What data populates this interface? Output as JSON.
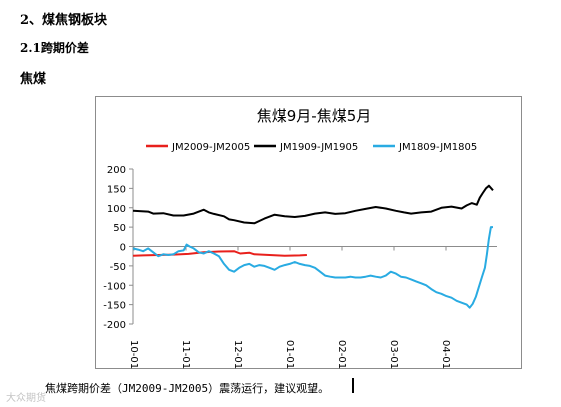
{
  "doc": {
    "section_heading": "2、煤焦钢板块",
    "subsection_heading": "2.1跨期价差",
    "product_heading": "焦煤",
    "caption": "焦煤跨期价差（JM2009-JM2005）震荡运行，建议观望。",
    "watermark": "大众期货"
  },
  "chart_data": {
    "type": "line",
    "title": "焦煤9月-焦煤5月",
    "x_ticks": [
      "10-01",
      "11-01",
      "12-01",
      "01-01",
      "02-01",
      "03-01",
      "04-01"
    ],
    "ylim": [
      -200,
      200
    ],
    "y_ticks": [
      200,
      150,
      100,
      50,
      0,
      -50,
      -100,
      -150,
      -200
    ],
    "grid": false,
    "legend_position": "top",
    "series": [
      {
        "name": "JM2009-JM2005",
        "color": "#e8201c",
        "points": [
          [
            0,
            -24
          ],
          [
            10,
            -23
          ],
          [
            25,
            -22
          ],
          [
            40,
            -21
          ],
          [
            55,
            -19
          ],
          [
            70,
            -15
          ],
          [
            85,
            -13
          ],
          [
            100,
            -12
          ],
          [
            106,
            -18
          ],
          [
            115,
            -16
          ],
          [
            120,
            -20
          ],
          [
            135,
            -22
          ],
          [
            150,
            -24
          ],
          [
            165,
            -23
          ],
          [
            172,
            -22
          ]
        ]
      },
      {
        "name": "JM1909-JM1905",
        "color": "#000000",
        "points": [
          [
            0,
            92
          ],
          [
            15,
            90
          ],
          [
            20,
            85
          ],
          [
            30,
            86
          ],
          [
            40,
            80
          ],
          [
            50,
            80
          ],
          [
            60,
            85
          ],
          [
            70,
            95
          ],
          [
            75,
            88
          ],
          [
            80,
            84
          ],
          [
            90,
            78
          ],
          [
            95,
            70
          ],
          [
            100,
            68
          ],
          [
            110,
            62
          ],
          [
            120,
            60
          ],
          [
            130,
            72
          ],
          [
            140,
            82
          ],
          [
            150,
            78
          ],
          [
            160,
            76
          ],
          [
            170,
            79
          ],
          [
            180,
            85
          ],
          [
            190,
            88
          ],
          [
            200,
            84
          ],
          [
            210,
            86
          ],
          [
            220,
            92
          ],
          [
            230,
            97
          ],
          [
            240,
            102
          ],
          [
            250,
            98
          ],
          [
            260,
            92
          ],
          [
            268,
            88
          ],
          [
            275,
            85
          ],
          [
            285,
            88
          ],
          [
            295,
            90
          ],
          [
            305,
            100
          ],
          [
            315,
            103
          ],
          [
            325,
            98
          ],
          [
            330,
            106
          ],
          [
            335,
            112
          ],
          [
            340,
            108
          ],
          [
            343,
            126
          ],
          [
            346,
            138
          ],
          [
            349,
            150
          ],
          [
            352,
            157
          ],
          [
            356,
            145
          ]
        ]
      },
      {
        "name": "JM1809-JM1805",
        "color": "#29abe2",
        "points": [
          [
            0,
            -5
          ],
          [
            5,
            -8
          ],
          [
            10,
            -12
          ],
          [
            15,
            -5
          ],
          [
            20,
            -15
          ],
          [
            25,
            -25
          ],
          [
            30,
            -20
          ],
          [
            35,
            -22
          ],
          [
            40,
            -20
          ],
          [
            45,
            -12
          ],
          [
            50,
            -10
          ],
          [
            53,
            5
          ],
          [
            56,
            0
          ],
          [
            60,
            -5
          ],
          [
            65,
            -15
          ],
          [
            70,
            -18
          ],
          [
            75,
            -12
          ],
          [
            80,
            -18
          ],
          [
            85,
            -25
          ],
          [
            90,
            -45
          ],
          [
            95,
            -60
          ],
          [
            100,
            -65
          ],
          [
            105,
            -55
          ],
          [
            110,
            -48
          ],
          [
            115,
            -45
          ],
          [
            120,
            -52
          ],
          [
            125,
            -48
          ],
          [
            130,
            -50
          ],
          [
            135,
            -55
          ],
          [
            140,
            -60
          ],
          [
            145,
            -52
          ],
          [
            150,
            -48
          ],
          [
            155,
            -45
          ],
          [
            160,
            -40
          ],
          [
            165,
            -45
          ],
          [
            170,
            -48
          ],
          [
            175,
            -50
          ],
          [
            180,
            -55
          ],
          [
            185,
            -65
          ],
          [
            190,
            -75
          ],
          [
            195,
            -78
          ],
          [
            200,
            -80
          ],
          [
            205,
            -80
          ],
          [
            210,
            -80
          ],
          [
            215,
            -78
          ],
          [
            220,
            -80
          ],
          [
            225,
            -80
          ],
          [
            230,
            -78
          ],
          [
            235,
            -75
          ],
          [
            240,
            -78
          ],
          [
            245,
            -80
          ],
          [
            250,
            -75
          ],
          [
            255,
            -65
          ],
          [
            260,
            -70
          ],
          [
            265,
            -78
          ],
          [
            270,
            -80
          ],
          [
            275,
            -85
          ],
          [
            280,
            -90
          ],
          [
            285,
            -95
          ],
          [
            290,
            -100
          ],
          [
            295,
            -110
          ],
          [
            300,
            -118
          ],
          [
            305,
            -122
          ],
          [
            310,
            -128
          ],
          [
            315,
            -132
          ],
          [
            320,
            -140
          ],
          [
            325,
            -145
          ],
          [
            330,
            -150
          ],
          [
            333,
            -158
          ],
          [
            336,
            -148
          ],
          [
            339,
            -130
          ],
          [
            342,
            -105
          ],
          [
            345,
            -80
          ],
          [
            348,
            -55
          ],
          [
            350,
            -20
          ],
          [
            352,
            20
          ],
          [
            354,
            50
          ],
          [
            356,
            50
          ]
        ]
      }
    ]
  }
}
